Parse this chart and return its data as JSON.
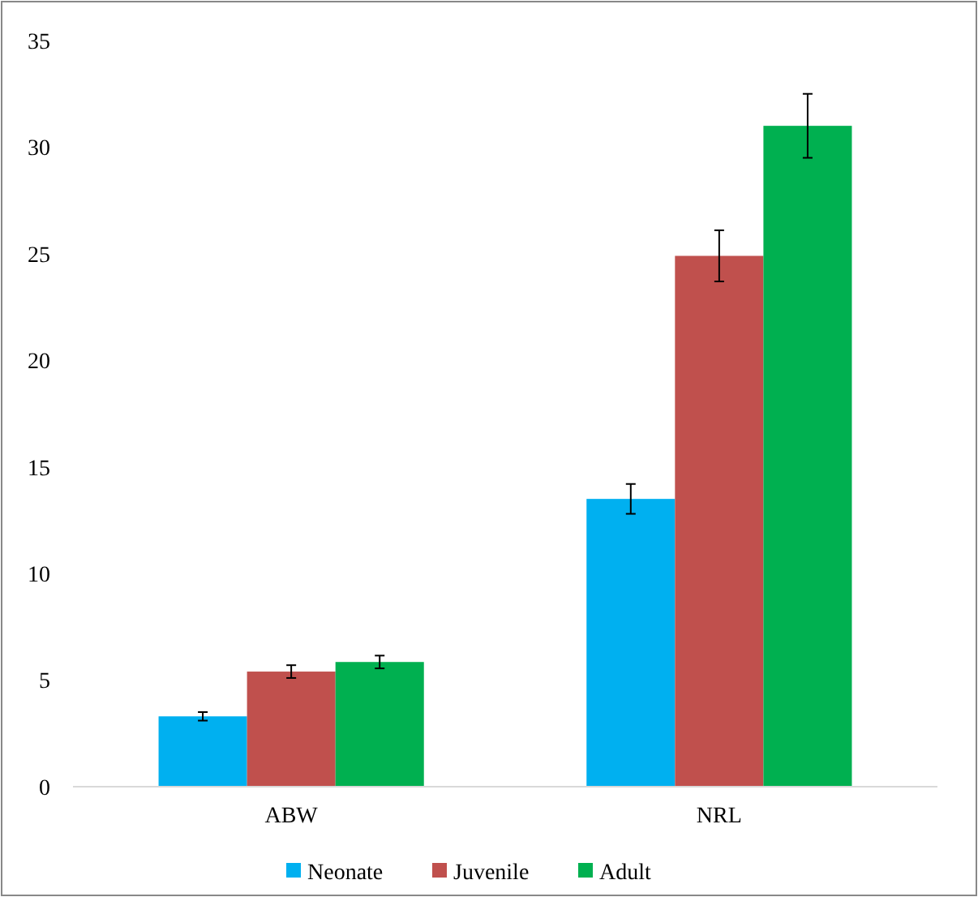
{
  "chart_data": {
    "type": "bar",
    "categories": [
      "ABW",
      "NRL"
    ],
    "series": [
      {
        "name": "Neonate",
        "color": "#00b0f0",
        "values": [
          3.3,
          13.5
        ],
        "errors": [
          0.2,
          0.7
        ]
      },
      {
        "name": "Juvenile",
        "color": "#c0504d",
        "values": [
          5.4,
          24.9
        ],
        "errors": [
          0.3,
          1.2
        ]
      },
      {
        "name": "Adult",
        "color": "#00b050",
        "values": [
          5.85,
          31
        ],
        "errors": [
          0.3,
          1.5
        ]
      }
    ],
    "ylim": [
      0,
      35
    ],
    "yticks": [
      0,
      5,
      10,
      15,
      20,
      25,
      30,
      35
    ],
    "grid": false,
    "legend": "bottom"
  }
}
